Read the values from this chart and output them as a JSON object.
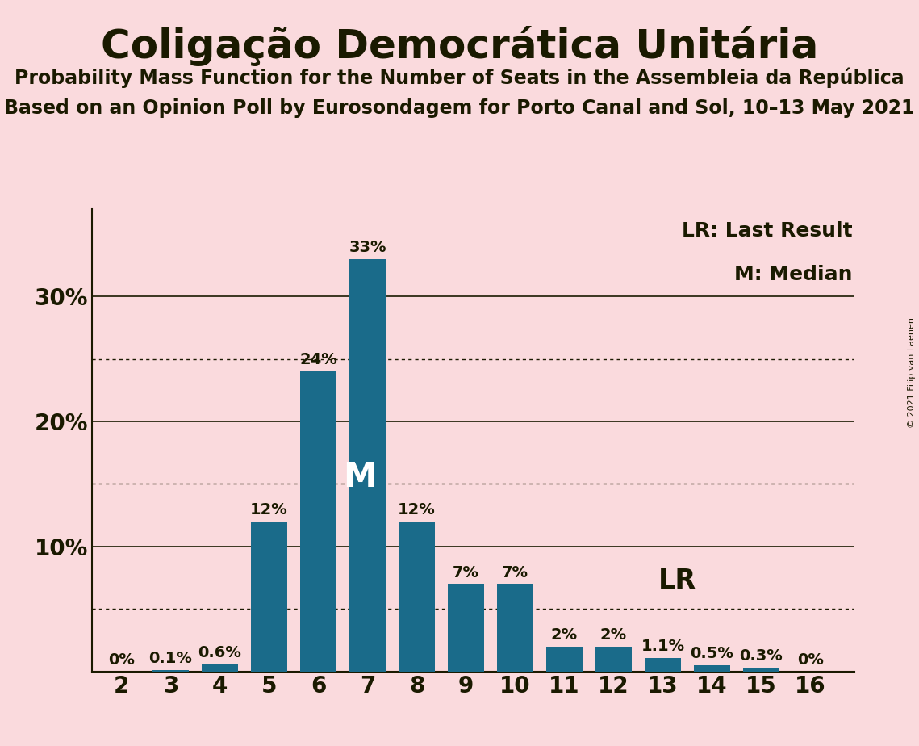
{
  "title": "Coligação Democrática Unitária",
  "subtitle1": "Probability Mass Function for the Number of Seats in the Assembleia da República",
  "subtitle2": "Based on an Opinion Poll by Eurosondagem for Porto Canal and Sol, 10–13 May 2021",
  "copyright": "© 2021 Filip van Laenen",
  "seats": [
    2,
    3,
    4,
    5,
    6,
    7,
    8,
    9,
    10,
    11,
    12,
    13,
    14,
    15,
    16
  ],
  "probabilities": [
    0.0,
    0.1,
    0.6,
    12.0,
    24.0,
    33.0,
    12.0,
    7.0,
    7.0,
    2.0,
    2.0,
    1.1,
    0.5,
    0.3,
    0.0
  ],
  "labels": [
    "0%",
    "0.1%",
    "0.6%",
    "12%",
    "24%",
    "33%",
    "12%",
    "7%",
    "7%",
    "2%",
    "2%",
    "1.1%",
    "0.5%",
    "0.3%",
    "0%"
  ],
  "bar_color": "#1a6b8a",
  "background_color": "#fadadd",
  "text_color": "#1a1a00",
  "median_seat": 7,
  "last_result_seat": 12,
  "dotted_lines": [
    5,
    15,
    25
  ],
  "solid_lines": [
    10,
    20,
    30
  ],
  "ylim": [
    0,
    37
  ],
  "bar_width": 0.75,
  "label_fontsize": 14,
  "tick_fontsize": 20,
  "title_fontsize": 36,
  "subtitle_fontsize": 17,
  "legend_fontsize": 18,
  "M_fontsize": 30,
  "LR_fontsize": 24
}
